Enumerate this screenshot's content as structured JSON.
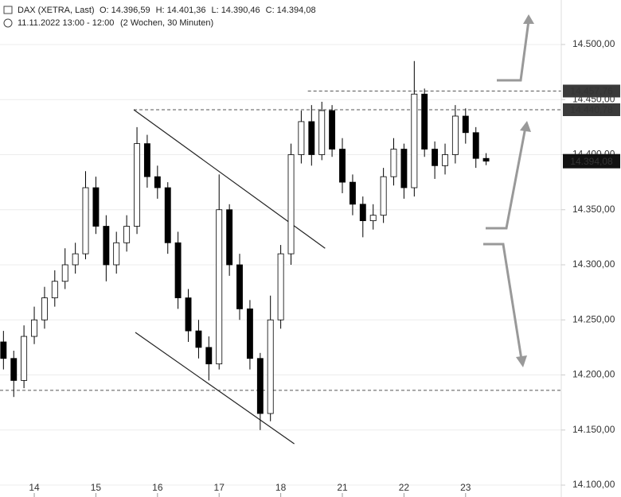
{
  "chart_data": {
    "type": "candlestick",
    "title": "DAX (XETRA, Last)",
    "ohlc_header": [
      {
        "key": "O:",
        "text": "14.396,59"
      },
      {
        "key": "H:",
        "text": "14.401,36"
      },
      {
        "key": "L:",
        "text": "14.390,46"
      },
      {
        "key": "C:",
        "text": "14.394,08"
      }
    ],
    "timestamp": "11.11.2022 13:00 - 12:00",
    "period": "(2 Wochen, 30 Minuten)",
    "up_color": "#ffffff",
    "down_color": "#000000",
    "x": [
      -0.5,
      -0.333,
      -0.167,
      0,
      0.167,
      0.333,
      0.5,
      0.667,
      0.833,
      1,
      1.167,
      1.333,
      1.5,
      1.667,
      1.833,
      2,
      2.167,
      2.333,
      2.5,
      2.667,
      2.833,
      3,
      3.167,
      3.333,
      3.5,
      3.667,
      3.833,
      4,
      4.167,
      4.333,
      4.5,
      4.667,
      4.833,
      5,
      5.167,
      5.333,
      5.5,
      5.667,
      5.833,
      6,
      6.167,
      6.333,
      6.5,
      6.667,
      6.833,
      7,
      7.167,
      7.333
    ],
    "open": [
      14230,
      14215,
      14195,
      14235,
      14250,
      14270,
      14285,
      14300,
      14310,
      14370,
      14335,
      14300,
      14320,
      14335,
      14410,
      14380,
      14370,
      14320,
      14270,
      14240,
      14225,
      14210,
      14350,
      14300,
      14260,
      14215,
      14165,
      14250,
      14310,
      14400,
      14430,
      14400,
      14440,
      14405,
      14375,
      14355,
      14340,
      14345,
      14380,
      14405,
      14370,
      14455,
      14405,
      14390,
      14400,
      14435,
      14420,
      14396.59
    ],
    "high": [
      14240,
      14222,
      14245,
      14262,
      14280,
      14295,
      14315,
      14320,
      14385,
      14380,
      14345,
      14330,
      14345,
      14425,
      14418,
      14390,
      14375,
      14330,
      14278,
      14250,
      14235,
      14382,
      14355,
      14310,
      14268,
      14220,
      14272,
      14318,
      14410,
      14440,
      14445,
      14448,
      14445,
      14415,
      14382,
      14362,
      14355,
      14388,
      14415,
      14410,
      14485,
      14460,
      14412,
      14410,
      14445,
      14442,
      14425,
      14401.36
    ],
    "low": [
      14205,
      14180,
      14188,
      14228,
      14242,
      14262,
      14278,
      14292,
      14305,
      14328,
      14285,
      14292,
      14312,
      14328,
      14370,
      14360,
      14310,
      14260,
      14230,
      14215,
      14195,
      14205,
      14290,
      14250,
      14205,
      14150,
      14158,
      14242,
      14300,
      14392,
      14390,
      14395,
      14398,
      14365,
      14345,
      14325,
      14332,
      14338,
      14372,
      14360,
      14362,
      14398,
      14378,
      14382,
      14392,
      14410,
      14388,
      14390.46
    ],
    "close": [
      14215,
      14195,
      14235,
      14250,
      14270,
      14285,
      14300,
      14310,
      14370,
      14335,
      14300,
      14320,
      14335,
      14410,
      14380,
      14370,
      14320,
      14270,
      14240,
      14225,
      14210,
      14350,
      14300,
      14260,
      14215,
      14165,
      14250,
      14310,
      14400,
      14430,
      14400,
      14440,
      14405,
      14375,
      14355,
      14340,
      14345,
      14380,
      14405,
      14370,
      14455,
      14405,
      14390,
      14400,
      14435,
      14420,
      14396.59,
      14394.08
    ],
    "xlim": [
      -0.556,
      8.553
    ],
    "xticks": [
      {
        "value": 0,
        "label": "14"
      },
      {
        "value": 1,
        "label": "15"
      },
      {
        "value": 2,
        "label": "16"
      },
      {
        "value": 3,
        "label": "17"
      },
      {
        "value": 4,
        "label": "18"
      },
      {
        "value": 5,
        "label": "21"
      },
      {
        "value": 6,
        "label": "22"
      },
      {
        "value": 7,
        "label": "23"
      }
    ],
    "ylim": [
      14089.2,
      14540.4
    ],
    "yticks": [
      {
        "value": 14100,
        "label": "14.100,00"
      },
      {
        "value": 14150,
        "label": "14.150,00"
      },
      {
        "value": 14200,
        "label": "14.200,00"
      },
      {
        "value": 14250,
        "label": "14.250,00"
      },
      {
        "value": 14300,
        "label": "14.300,00"
      },
      {
        "value": 14350,
        "label": "14.350,00"
      },
      {
        "value": 14400,
        "label": "14.400,00"
      },
      {
        "value": 14450,
        "label": "14.450,00"
      },
      {
        "value": 14500,
        "label": "14.500,00"
      }
    ],
    "grid": true,
    "levels": [
      {
        "value": 14457.76,
        "label": "14.457,76",
        "x": 4.44
      },
      {
        "value": 14440.78,
        "label": "14.440,78",
        "x": 1.615
      },
      {
        "value": 14186,
        "x": -0.556
      }
    ],
    "last_price": {
      "value": 14394.08,
      "label": "14.394,08"
    },
    "trendlines": [
      {
        "x": [
          1.615,
          4.72
        ],
        "y": [
          14440.8,
          14315
        ]
      },
      {
        "x": [
          1.64,
          4.22
        ],
        "y": [
          14238.6,
          14137.5
        ]
      }
    ]
  }
}
